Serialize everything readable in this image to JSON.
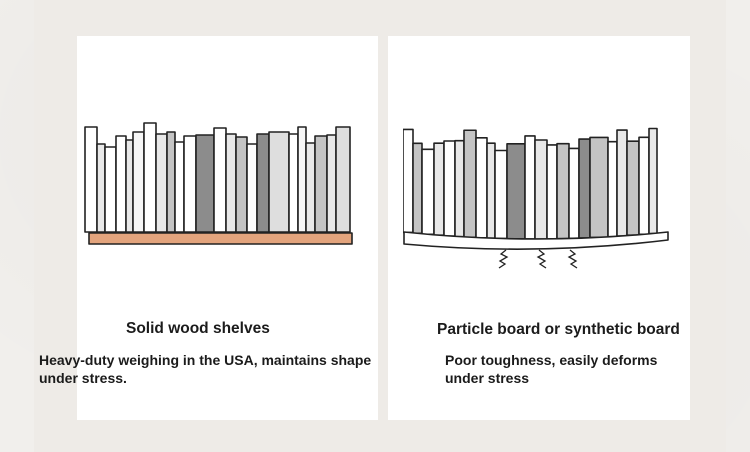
{
  "comparison": {
    "solid_wood": {
      "title": "Solid wood shelves",
      "description": "Heavy-duty weighing in the USA, maintains shape under stress.",
      "icon": "straight-shelf-with-books-icon",
      "shelf_color": "#e3a47d"
    },
    "particle_board": {
      "title": "Particle board or synthetic board",
      "description": "Poor toughness, easily deforms under stress",
      "icon": "bending-shelf-with-books-icon",
      "shelf_color": "#ffffff"
    }
  }
}
